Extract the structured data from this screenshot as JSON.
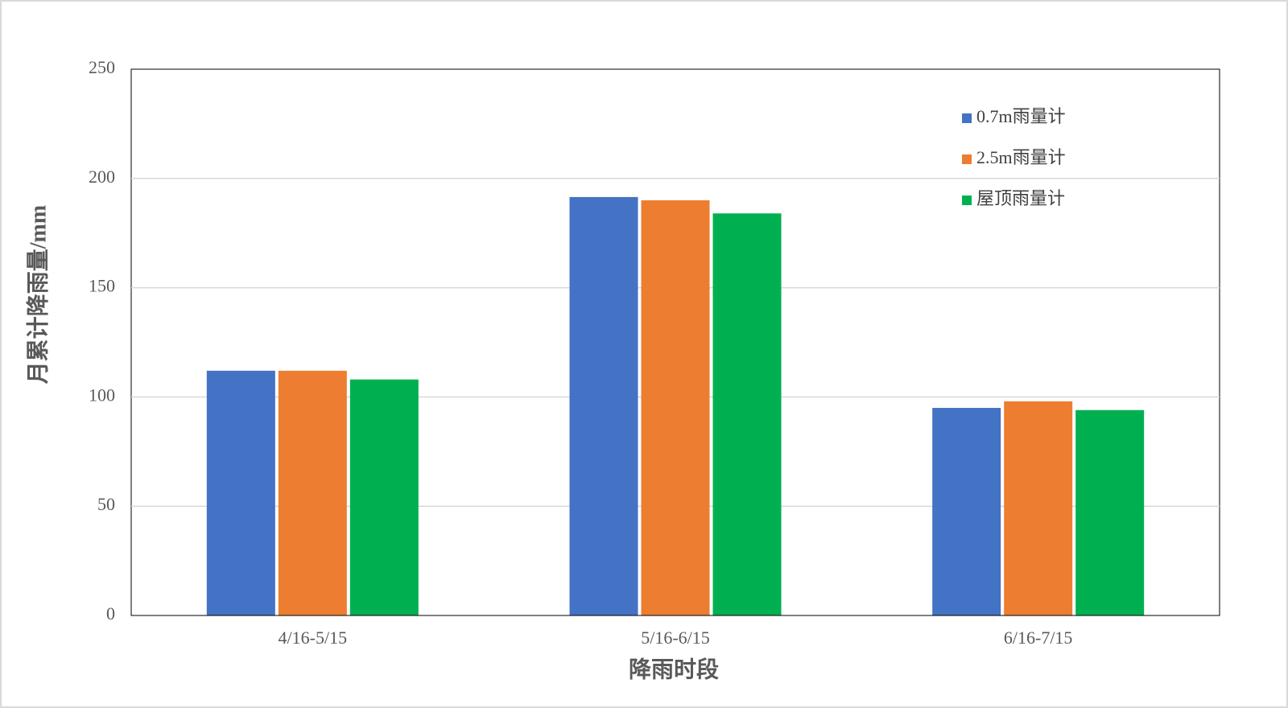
{
  "chart_data": {
    "type": "bar",
    "x_label": "降雨时段",
    "y_label": "月累计降雨量/mm",
    "categories": [
      "4/16-5/15",
      "5/16-6/15",
      "6/16-7/15"
    ],
    "series": [
      {
        "name": "0.7m雨量计",
        "color": "#4472c4",
        "values": [
          112,
          191.5,
          95
        ]
      },
      {
        "name": "2.5m雨量计",
        "color": "#ed7d31",
        "values": [
          112,
          190,
          98
        ]
      },
      {
        "name": "屋顶雨量计",
        "color": "#00b050",
        "values": [
          108,
          184,
          94
        ]
      }
    ],
    "ylim": [
      0,
      250
    ],
    "yticks": [
      0,
      50,
      100,
      150,
      200,
      250
    ],
    "grid": true,
    "legend": "upper-right"
  }
}
